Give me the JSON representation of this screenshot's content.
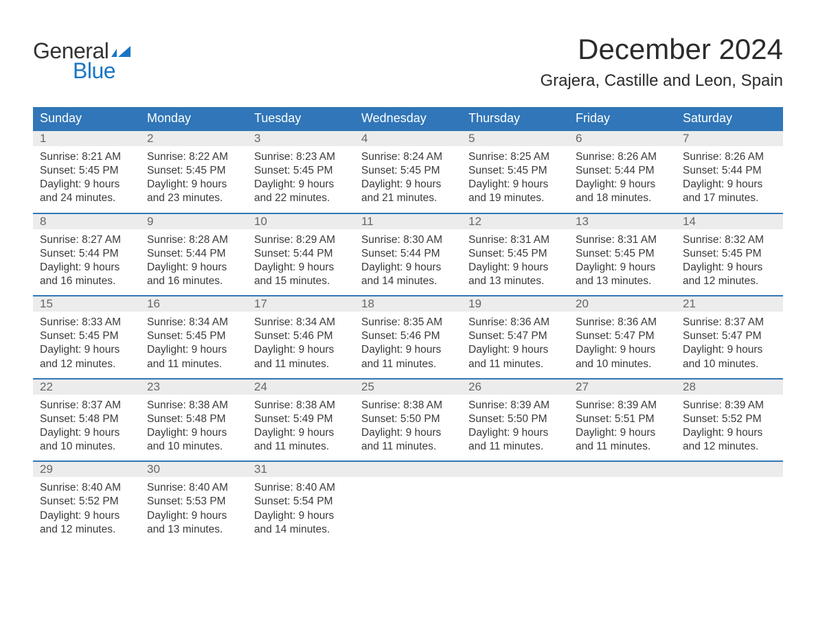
{
  "logo": {
    "general": "General",
    "blue": "Blue",
    "flag_color": "#1976c4"
  },
  "title": "December 2024",
  "location": "Grajera, Castille and Leon, Spain",
  "colors": {
    "header_bg": "#3076b8",
    "header_text": "#ffffff",
    "daynum_bg": "#ececec",
    "daynum_text": "#666666",
    "body_text": "#3a3a3a",
    "accent": "#1976c4",
    "page_bg": "#ffffff"
  },
  "typography": {
    "title_fontsize": 42,
    "location_fontsize": 24,
    "day_header_fontsize": 18,
    "cell_fontsize": 15.5
  },
  "day_labels": [
    "Sunday",
    "Monday",
    "Tuesday",
    "Wednesday",
    "Thursday",
    "Friday",
    "Saturday"
  ],
  "weeks": [
    [
      {
        "n": "1",
        "sunrise": "Sunrise: 8:21 AM",
        "sunset": "Sunset: 5:45 PM",
        "day1": "Daylight: 9 hours",
        "day2": "and 24 minutes."
      },
      {
        "n": "2",
        "sunrise": "Sunrise: 8:22 AM",
        "sunset": "Sunset: 5:45 PM",
        "day1": "Daylight: 9 hours",
        "day2": "and 23 minutes."
      },
      {
        "n": "3",
        "sunrise": "Sunrise: 8:23 AM",
        "sunset": "Sunset: 5:45 PM",
        "day1": "Daylight: 9 hours",
        "day2": "and 22 minutes."
      },
      {
        "n": "4",
        "sunrise": "Sunrise: 8:24 AM",
        "sunset": "Sunset: 5:45 PM",
        "day1": "Daylight: 9 hours",
        "day2": "and 21 minutes."
      },
      {
        "n": "5",
        "sunrise": "Sunrise: 8:25 AM",
        "sunset": "Sunset: 5:45 PM",
        "day1": "Daylight: 9 hours",
        "day2": "and 19 minutes."
      },
      {
        "n": "6",
        "sunrise": "Sunrise: 8:26 AM",
        "sunset": "Sunset: 5:44 PM",
        "day1": "Daylight: 9 hours",
        "day2": "and 18 minutes."
      },
      {
        "n": "7",
        "sunrise": "Sunrise: 8:26 AM",
        "sunset": "Sunset: 5:44 PM",
        "day1": "Daylight: 9 hours",
        "day2": "and 17 minutes."
      }
    ],
    [
      {
        "n": "8",
        "sunrise": "Sunrise: 8:27 AM",
        "sunset": "Sunset: 5:44 PM",
        "day1": "Daylight: 9 hours",
        "day2": "and 16 minutes."
      },
      {
        "n": "9",
        "sunrise": "Sunrise: 8:28 AM",
        "sunset": "Sunset: 5:44 PM",
        "day1": "Daylight: 9 hours",
        "day2": "and 16 minutes."
      },
      {
        "n": "10",
        "sunrise": "Sunrise: 8:29 AM",
        "sunset": "Sunset: 5:44 PM",
        "day1": "Daylight: 9 hours",
        "day2": "and 15 minutes."
      },
      {
        "n": "11",
        "sunrise": "Sunrise: 8:30 AM",
        "sunset": "Sunset: 5:44 PM",
        "day1": "Daylight: 9 hours",
        "day2": "and 14 minutes."
      },
      {
        "n": "12",
        "sunrise": "Sunrise: 8:31 AM",
        "sunset": "Sunset: 5:45 PM",
        "day1": "Daylight: 9 hours",
        "day2": "and 13 minutes."
      },
      {
        "n": "13",
        "sunrise": "Sunrise: 8:31 AM",
        "sunset": "Sunset: 5:45 PM",
        "day1": "Daylight: 9 hours",
        "day2": "and 13 minutes."
      },
      {
        "n": "14",
        "sunrise": "Sunrise: 8:32 AM",
        "sunset": "Sunset: 5:45 PM",
        "day1": "Daylight: 9 hours",
        "day2": "and 12 minutes."
      }
    ],
    [
      {
        "n": "15",
        "sunrise": "Sunrise: 8:33 AM",
        "sunset": "Sunset: 5:45 PM",
        "day1": "Daylight: 9 hours",
        "day2": "and 12 minutes."
      },
      {
        "n": "16",
        "sunrise": "Sunrise: 8:34 AM",
        "sunset": "Sunset: 5:45 PM",
        "day1": "Daylight: 9 hours",
        "day2": "and 11 minutes."
      },
      {
        "n": "17",
        "sunrise": "Sunrise: 8:34 AM",
        "sunset": "Sunset: 5:46 PM",
        "day1": "Daylight: 9 hours",
        "day2": "and 11 minutes."
      },
      {
        "n": "18",
        "sunrise": "Sunrise: 8:35 AM",
        "sunset": "Sunset: 5:46 PM",
        "day1": "Daylight: 9 hours",
        "day2": "and 11 minutes."
      },
      {
        "n": "19",
        "sunrise": "Sunrise: 8:36 AM",
        "sunset": "Sunset: 5:47 PM",
        "day1": "Daylight: 9 hours",
        "day2": "and 11 minutes."
      },
      {
        "n": "20",
        "sunrise": "Sunrise: 8:36 AM",
        "sunset": "Sunset: 5:47 PM",
        "day1": "Daylight: 9 hours",
        "day2": "and 10 minutes."
      },
      {
        "n": "21",
        "sunrise": "Sunrise: 8:37 AM",
        "sunset": "Sunset: 5:47 PM",
        "day1": "Daylight: 9 hours",
        "day2": "and 10 minutes."
      }
    ],
    [
      {
        "n": "22",
        "sunrise": "Sunrise: 8:37 AM",
        "sunset": "Sunset: 5:48 PM",
        "day1": "Daylight: 9 hours",
        "day2": "and 10 minutes."
      },
      {
        "n": "23",
        "sunrise": "Sunrise: 8:38 AM",
        "sunset": "Sunset: 5:48 PM",
        "day1": "Daylight: 9 hours",
        "day2": "and 10 minutes."
      },
      {
        "n": "24",
        "sunrise": "Sunrise: 8:38 AM",
        "sunset": "Sunset: 5:49 PM",
        "day1": "Daylight: 9 hours",
        "day2": "and 11 minutes."
      },
      {
        "n": "25",
        "sunrise": "Sunrise: 8:38 AM",
        "sunset": "Sunset: 5:50 PM",
        "day1": "Daylight: 9 hours",
        "day2": "and 11 minutes."
      },
      {
        "n": "26",
        "sunrise": "Sunrise: 8:39 AM",
        "sunset": "Sunset: 5:50 PM",
        "day1": "Daylight: 9 hours",
        "day2": "and 11 minutes."
      },
      {
        "n": "27",
        "sunrise": "Sunrise: 8:39 AM",
        "sunset": "Sunset: 5:51 PM",
        "day1": "Daylight: 9 hours",
        "day2": "and 11 minutes."
      },
      {
        "n": "28",
        "sunrise": "Sunrise: 8:39 AM",
        "sunset": "Sunset: 5:52 PM",
        "day1": "Daylight: 9 hours",
        "day2": "and 12 minutes."
      }
    ],
    [
      {
        "n": "29",
        "sunrise": "Sunrise: 8:40 AM",
        "sunset": "Sunset: 5:52 PM",
        "day1": "Daylight: 9 hours",
        "day2": "and 12 minutes."
      },
      {
        "n": "30",
        "sunrise": "Sunrise: 8:40 AM",
        "sunset": "Sunset: 5:53 PM",
        "day1": "Daylight: 9 hours",
        "day2": "and 13 minutes."
      },
      {
        "n": "31",
        "sunrise": "Sunrise: 8:40 AM",
        "sunset": "Sunset: 5:54 PM",
        "day1": "Daylight: 9 hours",
        "day2": "and 14 minutes."
      },
      {
        "n": "",
        "sunrise": "",
        "sunset": "",
        "day1": "",
        "day2": ""
      },
      {
        "n": "",
        "sunrise": "",
        "sunset": "",
        "day1": "",
        "day2": ""
      },
      {
        "n": "",
        "sunrise": "",
        "sunset": "",
        "day1": "",
        "day2": ""
      },
      {
        "n": "",
        "sunrise": "",
        "sunset": "",
        "day1": "",
        "day2": ""
      }
    ]
  ]
}
